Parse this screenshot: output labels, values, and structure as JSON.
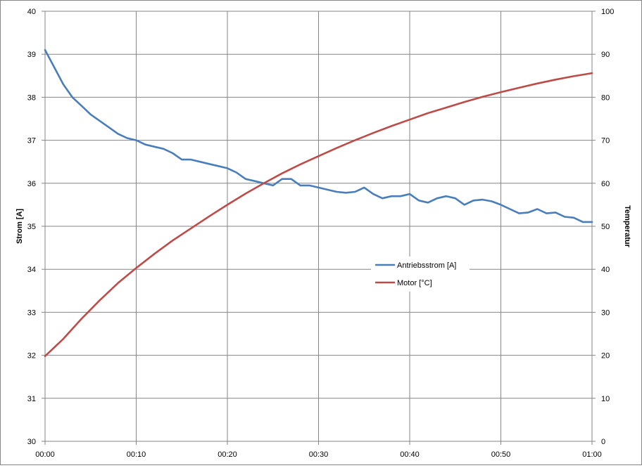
{
  "chart_data": {
    "type": "line",
    "title": "",
    "xlabel": "",
    "x_ticks": [
      "00:00",
      "00:10",
      "00:20",
      "00:30",
      "00:40",
      "00:50",
      "01:00"
    ],
    "xlim_minutes": [
      0,
      60
    ],
    "y_left": {
      "label": "Strom [A]",
      "lim": [
        30,
        40
      ],
      "ticks": [
        "30",
        "31",
        "32",
        "33",
        "34",
        "35",
        "36",
        "37",
        "38",
        "39",
        "40"
      ]
    },
    "y_right": {
      "label": "Temperatur",
      "lim": [
        0,
        100
      ],
      "ticks": [
        "0",
        "10",
        "20",
        "30",
        "40",
        "50",
        "60",
        "70",
        "80",
        "90",
        "100"
      ]
    },
    "grid": true,
    "legend_position": "center-right",
    "series": [
      {
        "name": "Antriebsstrom [A]",
        "axis": "left",
        "color": "#4a7ebb",
        "x_minutes": [
          0,
          1,
          2,
          3,
          4,
          5,
          6,
          7,
          8,
          9,
          10,
          11,
          12,
          13,
          14,
          15,
          16,
          17,
          18,
          19,
          20,
          21,
          22,
          23,
          24,
          25,
          26,
          27,
          28,
          29,
          30,
          31,
          32,
          33,
          34,
          35,
          36,
          37,
          38,
          39,
          40,
          41,
          42,
          43,
          44,
          45,
          46,
          47,
          48,
          49,
          50,
          51,
          52,
          53,
          54,
          55,
          56,
          57,
          58,
          59,
          60
        ],
        "values": [
          39.1,
          38.7,
          38.3,
          38.0,
          37.8,
          37.6,
          37.45,
          37.3,
          37.15,
          37.05,
          37.0,
          36.9,
          36.85,
          36.8,
          36.7,
          36.55,
          36.55,
          36.5,
          36.45,
          36.4,
          36.35,
          36.25,
          36.1,
          36.05,
          36.0,
          35.95,
          36.1,
          36.1,
          35.95,
          35.95,
          35.9,
          35.85,
          35.8,
          35.78,
          35.8,
          35.9,
          35.75,
          35.65,
          35.7,
          35.7,
          35.75,
          35.6,
          35.55,
          35.65,
          35.7,
          35.65,
          35.5,
          35.6,
          35.62,
          35.58,
          35.5,
          35.4,
          35.3,
          35.32,
          35.4,
          35.3,
          35.32,
          35.22,
          35.2,
          35.1,
          35.1
        ]
      },
      {
        "name": "Motor [°C]",
        "axis": "right",
        "color": "#be4b48",
        "x_minutes": [
          0,
          2,
          4,
          6,
          8,
          10,
          12,
          14,
          16,
          18,
          20,
          22,
          24,
          26,
          28,
          30,
          32,
          34,
          36,
          38,
          40,
          42,
          44,
          46,
          48,
          50,
          52,
          54,
          56,
          58,
          60
        ],
        "values": [
          19.8,
          23.8,
          28.5,
          32.8,
          36.8,
          40.3,
          43.6,
          46.7,
          49.5,
          52.3,
          55.0,
          57.6,
          60.0,
          62.3,
          64.4,
          66.3,
          68.2,
          70.0,
          71.7,
          73.3,
          74.8,
          76.3,
          77.6,
          78.9,
          80.1,
          81.2,
          82.2,
          83.2,
          84.1,
          84.9,
          85.6
        ]
      }
    ]
  }
}
